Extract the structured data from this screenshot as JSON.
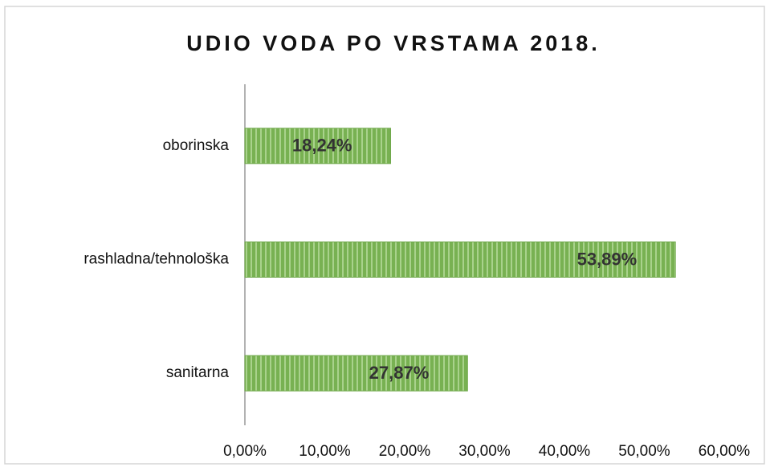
{
  "chart_data": {
    "type": "bar",
    "orientation": "horizontal",
    "title": "UDIO VODA PO VRSTAMA 2018.",
    "categories": [
      "oborinska",
      "rashladna/tehnološka",
      "sanitarna"
    ],
    "values": [
      18.24,
      53.89,
      27.87
    ],
    "value_labels": [
      "18,24%",
      "53,89%",
      "27,87%"
    ],
    "color": "#6fa84a",
    "xlim": [
      0,
      60
    ],
    "xticks": [
      {
        "value": 0,
        "label": "0,00%"
      },
      {
        "value": 10,
        "label": "10,00%"
      },
      {
        "value": 20,
        "label": "20,00%"
      },
      {
        "value": 30,
        "label": "30,00%"
      },
      {
        "value": 40,
        "label": "40,00%"
      },
      {
        "value": 50,
        "label": "50,00%"
      },
      {
        "value": 60,
        "label": "60,00%"
      }
    ],
    "grid": false
  }
}
